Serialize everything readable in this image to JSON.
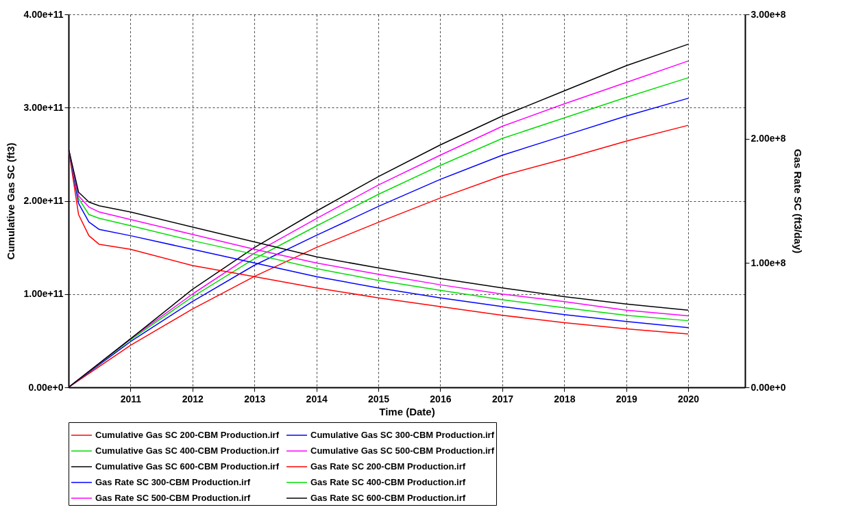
{
  "chart_data": {
    "type": "line",
    "xlabel": "Time (Date)",
    "ylabel": "Cumulative Gas SC (ft3)",
    "y2label": "Gas Rate SC (ft3/day)",
    "xlim": [
      "2010-01-01",
      "2020-12-01"
    ],
    "xticks": [
      "2011",
      "2012",
      "2013",
      "2014",
      "2015",
      "2016",
      "2017",
      "2018",
      "2019",
      "2020"
    ],
    "ylim": [
      0,
      400000000000
    ],
    "yticks": [
      {
        "value": 0,
        "label": "0.00e+0"
      },
      {
        "value": 100000000000,
        "label": "1.00e+11"
      },
      {
        "value": 200000000000,
        "label": "2.00e+11"
      },
      {
        "value": 300000000000,
        "label": "3.00e+11"
      },
      {
        "value": 400000000000,
        "label": "4.00e+11"
      }
    ],
    "y2lim": [
      0,
      300000000
    ],
    "y2ticks": [
      {
        "value": 0,
        "label": "0.00e+0"
      },
      {
        "value": 100000000,
        "label": "1.00e+8"
      },
      {
        "value": 200000000,
        "label": "2.00e+8"
      },
      {
        "value": 300000000,
        "label": "3.00e+8"
      }
    ],
    "grid": true,
    "legend": "bottom",
    "series": [
      {
        "name": "Cumulative Gas SC 200-CBM Production.irf",
        "color": "#ff0000",
        "x": [
          "2010-01",
          "2011",
          "2012",
          "2013",
          "2014",
          "2015",
          "2016",
          "2017",
          "2018",
          "2019",
          "2020"
        ],
        "values": [
          0,
          45000000000,
          84000000000,
          119000000000,
          150000000000,
          177000000000,
          203000000000,
          227000000000,
          245000000000,
          264000000000,
          281000000000
        ]
      },
      {
        "name": "Cumulative Gas SC 300-CBM Production.irf",
        "color": "#0000ff",
        "x": [
          "2010-01",
          "2011",
          "2012",
          "2013",
          "2014",
          "2015",
          "2016",
          "2017",
          "2018",
          "2019",
          "2020"
        ],
        "values": [
          0,
          49000000000,
          92000000000,
          131000000000,
          163000000000,
          194000000000,
          223000000000,
          249000000000,
          270000000000,
          291000000000,
          310000000000
        ]
      },
      {
        "name": "Cumulative Gas SC 400-CBM Production.irf",
        "color": "#00dd00",
        "x": [
          "2010-01",
          "2011",
          "2012",
          "2013",
          "2014",
          "2015",
          "2016",
          "2017",
          "2018",
          "2019",
          "2020"
        ],
        "values": [
          0,
          51000000000,
          97000000000,
          138000000000,
          173000000000,
          207000000000,
          238000000000,
          267000000000,
          289000000000,
          311000000000,
          332000000000
        ]
      },
      {
        "name": "Cumulative Gas SC 500-CBM Production.irf",
        "color": "#ff00ff",
        "x": [
          "2010-01",
          "2011",
          "2012",
          "2013",
          "2014",
          "2015",
          "2016",
          "2017",
          "2018",
          "2019",
          "2020"
        ],
        "values": [
          0,
          52000000000,
          100000000000,
          144000000000,
          181000000000,
          217000000000,
          249000000000,
          280000000000,
          304000000000,
          327000000000,
          350000000000
        ]
      },
      {
        "name": "Cumulative Gas SC 600-CBM Production.irf",
        "color": "#000000",
        "x": [
          "2010-01",
          "2011",
          "2012",
          "2013",
          "2014",
          "2015",
          "2016",
          "2017",
          "2018",
          "2019",
          "2020"
        ],
        "values": [
          0,
          52000000000,
          105000000000,
          150000000000,
          189000000000,
          226000000000,
          260000000000,
          291000000000,
          318000000000,
          345000000000,
          368000000000
        ]
      },
      {
        "name": "Gas Rate SC 200-CBM Production.irf",
        "color": "#ff0000",
        "axis": "y2",
        "x": [
          "2010-01",
          "2010-03",
          "2010-05",
          "2010-07",
          "2011",
          "2012",
          "2013",
          "2014",
          "2015",
          "2016",
          "2017",
          "2018",
          "2019",
          "2020"
        ],
        "values": [
          192000000,
          139000000,
          122000000,
          115000000,
          111000000,
          98000000,
          89000000,
          80000000,
          72000000,
          65000000,
          58000000,
          52000000,
          47000000,
          43000000
        ]
      },
      {
        "name": "Gas Rate SC 300-CBM Production.irf",
        "color": "#0000ff",
        "axis": "y2",
        "x": [
          "2010-01",
          "2010-03",
          "2010-05",
          "2010-07",
          "2011",
          "2012",
          "2013",
          "2014",
          "2015",
          "2016",
          "2017",
          "2018",
          "2019",
          "2020"
        ],
        "values": [
          192000000,
          148000000,
          133000000,
          127000000,
          122000000,
          111000000,
          100000000,
          89000000,
          80000000,
          72000000,
          65000000,
          58500000,
          53000000,
          48000000
        ]
      },
      {
        "name": "Gas Rate SC 400-CBM Production.irf",
        "color": "#00dd00",
        "axis": "y2",
        "x": [
          "2010-01",
          "2010-03",
          "2010-05",
          "2010-07",
          "2011",
          "2012",
          "2013",
          "2014",
          "2015",
          "2016",
          "2017",
          "2018",
          "2019",
          "2020"
        ],
        "values": [
          192000000,
          152000000,
          139000000,
          136000000,
          130000000,
          118000000,
          107000000,
          95500000,
          86000000,
          78000000,
          70500000,
          64000000,
          58000000,
          53600000
        ]
      },
      {
        "name": "Gas Rate SC 500-CBM Production.irf",
        "color": "#ff00ff",
        "axis": "y2",
        "x": [
          "2010-01",
          "2010-03",
          "2010-05",
          "2010-07",
          "2011",
          "2012",
          "2013",
          "2014",
          "2015",
          "2016",
          "2017",
          "2018",
          "2019",
          "2020"
        ],
        "values": [
          192000000,
          154000000,
          145000000,
          141000000,
          135000000,
          123000000,
          111000000,
          100000000,
          91000000,
          82500000,
          75000000,
          69000000,
          62000000,
          57500000
        ]
      },
      {
        "name": "Gas Rate SC 600-CBM Production.irf",
        "color": "#000000",
        "axis": "y2",
        "x": [
          "2010-01",
          "2010-03",
          "2010-05",
          "2010-07",
          "2011",
          "2012",
          "2013",
          "2014",
          "2015",
          "2016",
          "2017",
          "2018",
          "2019",
          "2020"
        ],
        "values": [
          192000000,
          157000000,
          149000000,
          146000000,
          141000000,
          129000000,
          117000000,
          105000000,
          96000000,
          87500000,
          80000000,
          73000000,
          67000000,
          62000000
        ]
      }
    ]
  }
}
